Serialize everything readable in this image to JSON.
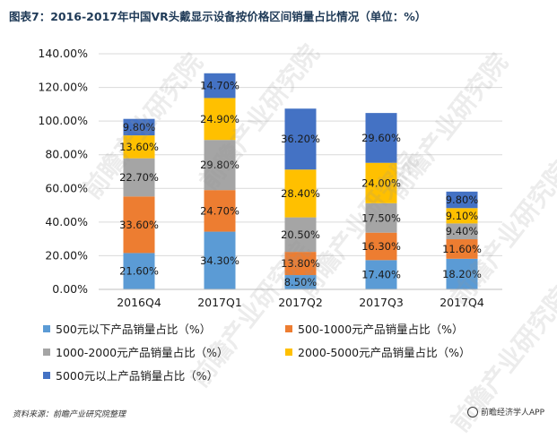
{
  "header": {
    "title": "图表7：2016-2017年中国VR头戴显示设备按价格区间销量占比情况（单位：%）"
  },
  "footer": {
    "source": "资料来源：前瞻产业研究院整理",
    "brand": "前瞻经济学人APP"
  },
  "watermark_text": "前瞻产业研究院",
  "chart_data": {
    "type": "bar",
    "stacked": true,
    "categories": [
      "2016Q4",
      "2017Q1",
      "2017Q2",
      "2017Q3",
      "2017Q4"
    ],
    "yticks": [
      "0.00%",
      "20.00%",
      "40.00%",
      "60.00%",
      "80.00%",
      "100.00%",
      "120.00%",
      "140.00%"
    ],
    "ylim": [
      0,
      140
    ],
    "grid": true,
    "legend_position": "bottom",
    "series": [
      {
        "name": "500元以下产品销量占比（%）",
        "color": "#5b9bd5",
        "values": [
          21.6,
          34.3,
          8.5,
          17.4,
          18.2
        ],
        "labels": [
          "21.60%",
          "34.30%",
          "8.50%",
          "17.40%",
          "18.20%"
        ]
      },
      {
        "name": "500-1000元产品销量占比（%）",
        "color": "#ed7d31",
        "values": [
          33.6,
          24.7,
          13.8,
          16.3,
          11.6
        ],
        "labels": [
          "33.60%",
          "24.70%",
          "13.80%",
          "16.30%",
          "11.60%"
        ]
      },
      {
        "name": "1000-2000元产品销量占比（%）",
        "color": "#a5a5a5",
        "values": [
          22.7,
          29.8,
          20.5,
          17.5,
          9.4
        ],
        "labels": [
          "22.70%",
          "29.80%",
          "20.50%",
          "17.50%",
          "9.40%"
        ]
      },
      {
        "name": "2000-5000元产品销量占比（%）",
        "color": "#ffc000",
        "values": [
          13.6,
          24.9,
          28.4,
          24.0,
          9.1
        ],
        "labels": [
          "13.60%",
          "24.90%",
          "28.40%",
          "24.00%",
          "9.10%"
        ]
      },
      {
        "name": "5000元以上产品销量占比（%）",
        "color": "#4472c4",
        "values": [
          9.8,
          14.7,
          36.2,
          29.6,
          9.8
        ],
        "labels": [
          "9.80%",
          "14.70%",
          "36.20%",
          "29.60%",
          "9.80%"
        ]
      }
    ]
  }
}
